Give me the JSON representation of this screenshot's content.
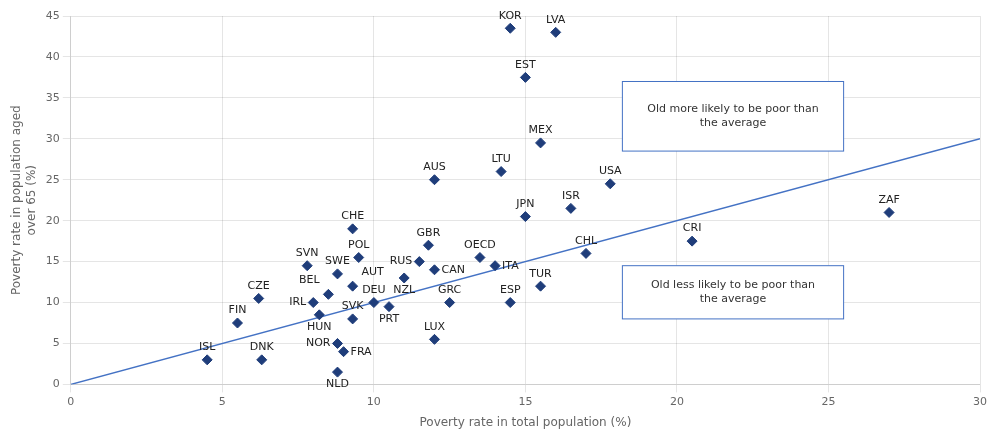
{
  "chart_data": {
    "type": "scatter",
    "xlabel": "Poverty rate in total population (%)",
    "ylabel": [
      "Poverty rate in population aged",
      "over 65 (%)"
    ],
    "xlim": [
      0,
      30
    ],
    "ylim": [
      0,
      45
    ],
    "xticks": [
      0,
      5,
      10,
      15,
      20,
      25,
      30
    ],
    "yticks": [
      0,
      5,
      10,
      15,
      20,
      25,
      30,
      35,
      40,
      45
    ],
    "grid": true,
    "series": [
      {
        "type": "scatter",
        "color": "#1f3d7a",
        "marker": "diamond",
        "point_labels": [
          "ISL",
          "DNK",
          "FIN",
          "CZE",
          "NLD",
          "FRA",
          "NOR",
          "SVK",
          "HUN",
          "IRL",
          "BEL",
          "SVN",
          "LUX",
          "PRT",
          "GRC",
          "ESP",
          "DEU",
          "AUT",
          "SWE",
          "POL",
          "CHE",
          "NZL",
          "CAN",
          "RUS",
          "GBR",
          "ITA",
          "OECD",
          "TUR",
          "AUS",
          "LTU",
          "MEX",
          "JPN",
          "ISR",
          "USA",
          "CHL",
          "KOR",
          "EST",
          "LVA",
          "CRI",
          "ZAF"
        ],
        "x": [
          4.5,
          6.3,
          5.5,
          6.2,
          8.8,
          9.0,
          8.8,
          9.3,
          8.2,
          8.0,
          8.5,
          7.8,
          12.0,
          10.5,
          12.5,
          14.5,
          10.0,
          9.3,
          8.8,
          9.5,
          9.3,
          11.0,
          12.0,
          11.5,
          11.8,
          14.0,
          13.5,
          15.5,
          12.0,
          14.2,
          15.5,
          15.0,
          16.5,
          17.8,
          17.0,
          14.5,
          15.0,
          16.0,
          20.5,
          27.0
        ],
        "values": [
          3.0,
          3.0,
          7.5,
          10.5,
          1.5,
          4.0,
          5.0,
          8.0,
          8.5,
          10.0,
          11.0,
          14.5,
          5.5,
          9.5,
          10.0,
          10.0,
          10.0,
          12.0,
          13.5,
          15.5,
          19.0,
          13.0,
          14.0,
          15.0,
          17.0,
          14.5,
          15.5,
          12.0,
          25.0,
          26.0,
          29.5,
          20.5,
          21.5,
          24.5,
          16.0,
          43.5,
          37.5,
          43.0,
          17.5,
          21.0
        ]
      },
      {
        "type": "line",
        "color": "#4472c4",
        "x": [
          0,
          30
        ],
        "values": [
          0,
          30
        ]
      }
    ],
    "annotations": [
      {
        "text": "Old more likely to be poor than\nthe average",
        "x": [
          18.2,
          25.5
        ],
        "y": [
          28.5,
          37.0
        ],
        "color": "#4472c4"
      },
      {
        "text": "Old less likely to be poor than\nthe average",
        "x": [
          18.2,
          25.5
        ],
        "y": [
          8.0,
          14.5
        ],
        "color": "#4472c4"
      }
    ]
  }
}
